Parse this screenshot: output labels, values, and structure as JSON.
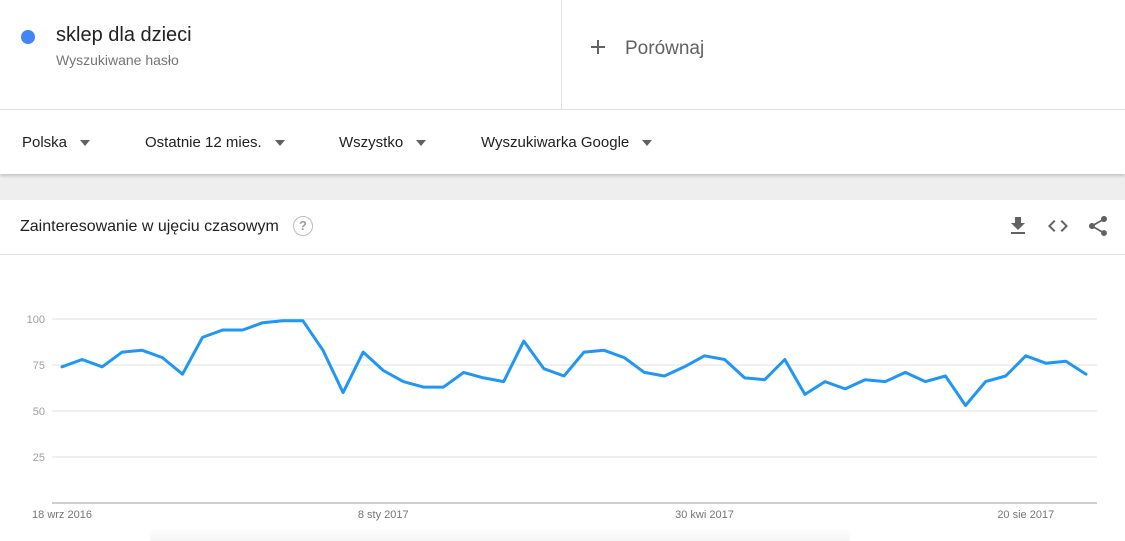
{
  "term": {
    "name": "sklep dla dzieci",
    "subtitle": "Wyszukiwane hasło",
    "color": "#4285f4"
  },
  "compare": {
    "label": "Porównaj",
    "icon": "plus-icon"
  },
  "filters": [
    {
      "label": "Polska",
      "icon": "caret-down-icon"
    },
    {
      "label": "Ostatnie 12 mies.",
      "icon": "caret-down-icon"
    },
    {
      "label": "Wszystko",
      "icon": "caret-down-icon"
    },
    {
      "label": "Wyszukiwarka Google",
      "icon": "caret-down-icon"
    }
  ],
  "card": {
    "title": "Zainteresowanie w ujęciu czasowym",
    "help_glyph": "?",
    "tools": [
      "download-icon",
      "embed-code-icon",
      "share-icon"
    ]
  },
  "chart_data": {
    "type": "line",
    "title": "",
    "xlabel": "",
    "ylabel": "",
    "ylim": [
      0,
      100
    ],
    "yticks": [
      25,
      50,
      75,
      100
    ],
    "grid": true,
    "line_color": "#2196f3",
    "x_tick_labels": [
      "18 wrz 2016",
      "8 sty 2017",
      "30 kwi 2017",
      "20 sie 2017"
    ],
    "x_tick_index": [
      0,
      16,
      32,
      48
    ],
    "values": [
      74,
      78,
      74,
      82,
      83,
      79,
      70,
      90,
      94,
      94,
      98,
      99,
      99,
      83,
      60,
      82,
      72,
      66,
      63,
      63,
      71,
      68,
      66,
      88,
      73,
      69,
      82,
      83,
      79,
      71,
      69,
      74,
      80,
      78,
      68,
      67,
      78,
      59,
      66,
      62,
      67,
      66,
      71,
      66,
      69,
      53,
      66,
      69,
      80,
      76,
      77,
      70
    ]
  }
}
